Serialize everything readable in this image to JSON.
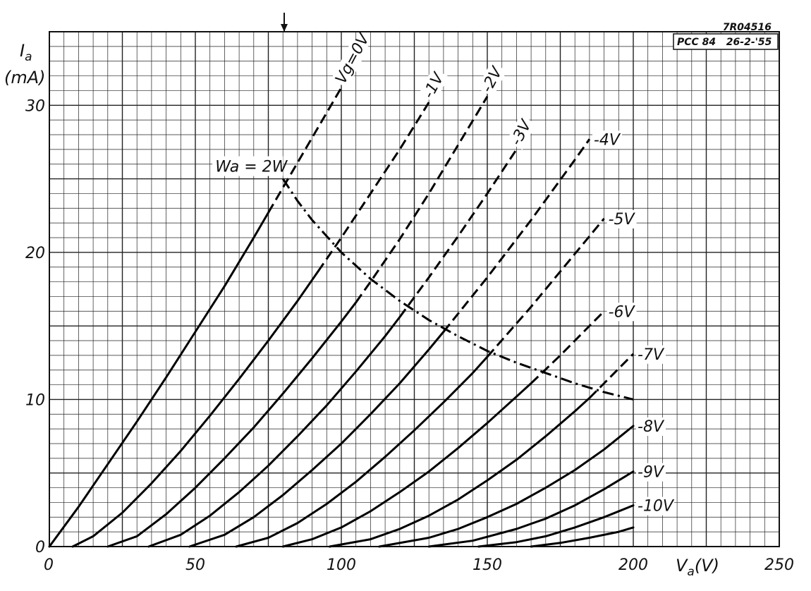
{
  "chart_data": {
    "type": "line",
    "stamp_id": "7R04516",
    "stamp_type": "PCC 84   26-2-'55",
    "xlabel": "V",
    "xlabel_sub": "a",
    "xlabel_unit": "(V)",
    "ylabel": "I",
    "ylabel_sub": "a",
    "ylabel_unit": "(mA)",
    "xlim": [
      0,
      250
    ],
    "ylim": [
      0,
      35
    ],
    "x_ticks": [
      {
        "value": 0,
        "label": "0"
      },
      {
        "value": 50,
        "label": "50"
      },
      {
        "value": 100,
        "label": "100"
      },
      {
        "value": 150,
        "label": "150"
      },
      {
        "value": 200,
        "label": "200"
      },
      {
        "value": 250,
        "label": "250"
      }
    ],
    "y_ticks": [
      {
        "value": 0,
        "label": "0"
      },
      {
        "value": 10,
        "label": "10"
      },
      {
        "value": 20,
        "label": "20"
      },
      {
        "value": 30,
        "label": "30"
      }
    ],
    "grid": true,
    "series": [
      {
        "name": "Vg=0V",
        "vg": 0,
        "points": [
          [
            0,
            0
          ],
          [
            10,
            2.7
          ],
          [
            20,
            5.6
          ],
          [
            30,
            8.5
          ],
          [
            40,
            11.5
          ],
          [
            50,
            14.6
          ],
          [
            60,
            17.7
          ],
          [
            70,
            21.0
          ],
          [
            75,
            22.7
          ],
          [
            80,
            24.4
          ],
          [
            90,
            27.8
          ],
          [
            100,
            31.2
          ]
        ],
        "solid_to": 75
      },
      {
        "name": "-1V",
        "vg": -1,
        "points": [
          [
            8,
            0
          ],
          [
            15,
            0.7
          ],
          [
            25,
            2.3
          ],
          [
            35,
            4.3
          ],
          [
            45,
            6.5
          ],
          [
            55,
            8.9
          ],
          [
            65,
            11.4
          ],
          [
            75,
            14.0
          ],
          [
            85,
            16.7
          ],
          [
            92,
            18.7
          ],
          [
            100,
            21.0
          ],
          [
            110,
            24.0
          ],
          [
            120,
            27.0
          ],
          [
            130,
            30.2
          ]
        ],
        "solid_to": 92
      },
      {
        "name": "-2V",
        "vg": -2,
        "points": [
          [
            20,
            0
          ],
          [
            30,
            0.7
          ],
          [
            40,
            2.2
          ],
          [
            50,
            4.0
          ],
          [
            60,
            6.0
          ],
          [
            70,
            8.1
          ],
          [
            80,
            10.4
          ],
          [
            90,
            12.8
          ],
          [
            100,
            15.3
          ],
          [
            105,
            16.6
          ],
          [
            110,
            18.0
          ],
          [
            120,
            20.9
          ],
          [
            130,
            24.0
          ],
          [
            140,
            27.3
          ],
          [
            150,
            30.6
          ]
        ],
        "solid_to": 105
      },
      {
        "name": "-3V",
        "vg": -3,
        "points": [
          [
            34,
            0
          ],
          [
            45,
            0.8
          ],
          [
            55,
            2.1
          ],
          [
            65,
            3.7
          ],
          [
            75,
            5.5
          ],
          [
            85,
            7.5
          ],
          [
            95,
            9.6
          ],
          [
            105,
            11.9
          ],
          [
            115,
            14.3
          ],
          [
            120,
            15.6
          ],
          [
            130,
            18.3
          ],
          [
            140,
            21.1
          ],
          [
            150,
            24.0
          ],
          [
            160,
            27.0
          ]
        ],
        "solid_to": 120
      },
      {
        "name": "-4V",
        "vg": -4,
        "points": [
          [
            48,
            0
          ],
          [
            60,
            0.8
          ],
          [
            70,
            2.0
          ],
          [
            80,
            3.5
          ],
          [
            90,
            5.2
          ],
          [
            100,
            7.0
          ],
          [
            110,
            9.0
          ],
          [
            120,
            11.1
          ],
          [
            130,
            13.4
          ],
          [
            135,
            14.6
          ],
          [
            150,
            18.3
          ],
          [
            165,
            22.2
          ],
          [
            180,
            26.3
          ],
          [
            185,
            27.7
          ]
        ],
        "solid_to": 135
      },
      {
        "name": "-5V",
        "vg": -5,
        "points": [
          [
            64,
            0
          ],
          [
            75,
            0.6
          ],
          [
            85,
            1.6
          ],
          [
            95,
            2.9
          ],
          [
            105,
            4.4
          ],
          [
            115,
            6.1
          ],
          [
            125,
            7.9
          ],
          [
            135,
            9.8
          ],
          [
            145,
            11.8
          ],
          [
            150,
            12.9
          ],
          [
            165,
            16.3
          ],
          [
            180,
            19.9
          ],
          [
            190,
            22.3
          ]
        ],
        "solid_to": 150
      },
      {
        "name": "-6V",
        "vg": -6,
        "points": [
          [
            80,
            0
          ],
          [
            90,
            0.5
          ],
          [
            100,
            1.3
          ],
          [
            110,
            2.4
          ],
          [
            120,
            3.7
          ],
          [
            130,
            5.1
          ],
          [
            140,
            6.7
          ],
          [
            150,
            8.4
          ],
          [
            160,
            10.2
          ],
          [
            165,
            11.1
          ],
          [
            175,
            13.0
          ],
          [
            185,
            15.0
          ],
          [
            190,
            16.0
          ]
        ],
        "solid_to": 165
      },
      {
        "name": "-7V",
        "vg": -7,
        "points": [
          [
            96,
            0
          ],
          [
            110,
            0.5
          ],
          [
            120,
            1.2
          ],
          [
            130,
            2.1
          ],
          [
            140,
            3.2
          ],
          [
            150,
            4.5
          ],
          [
            160,
            5.9
          ],
          [
            170,
            7.5
          ],
          [
            180,
            9.2
          ],
          [
            185,
            10.1
          ],
          [
            190,
            11.1
          ],
          [
            200,
            13.1
          ]
        ],
        "solid_to": 185
      },
      {
        "name": "-8V",
        "vg": -8,
        "points": [
          [
            113,
            0
          ],
          [
            130,
            0.6
          ],
          [
            140,
            1.2
          ],
          [
            150,
            2.0
          ],
          [
            160,
            2.9
          ],
          [
            170,
            4.0
          ],
          [
            180,
            5.2
          ],
          [
            190,
            6.6
          ],
          [
            200,
            8.2
          ]
        ],
        "solid_to": 200
      },
      {
        "name": "-9V",
        "vg": -9,
        "points": [
          [
            130,
            0
          ],
          [
            145,
            0.4
          ],
          [
            160,
            1.2
          ],
          [
            170,
            1.9
          ],
          [
            180,
            2.8
          ],
          [
            190,
            3.9
          ],
          [
            200,
            5.1
          ]
        ],
        "solid_to": 200
      },
      {
        "name": "-10V",
        "vg": -10,
        "points": [
          [
            147,
            0
          ],
          [
            160,
            0.3
          ],
          [
            170,
            0.7
          ],
          [
            180,
            1.3
          ],
          [
            190,
            2.0
          ],
          [
            200,
            2.8
          ]
        ],
        "solid_to": 200
      },
      {
        "name": "",
        "vg": -11,
        "points": [
          [
            165,
            0
          ],
          [
            175,
            0.25
          ],
          [
            185,
            0.6
          ],
          [
            195,
            1.0
          ],
          [
            200,
            1.3
          ]
        ],
        "solid_to": 200
      }
    ],
    "power_curve": {
      "name": "Wa = 2W",
      "points": [
        [
          80,
          25.0
        ],
        [
          85,
          23.5
        ],
        [
          90,
          22.2
        ],
        [
          100,
          20.0
        ],
        [
          110,
          18.2
        ],
        [
          120,
          16.7
        ],
        [
          130,
          15.4
        ],
        [
          140,
          14.3
        ],
        [
          150,
          13.3
        ],
        [
          160,
          12.5
        ],
        [
          170,
          11.8
        ],
        [
          180,
          11.1
        ],
        [
          190,
          10.5
        ],
        [
          200,
          10.0
        ]
      ]
    }
  }
}
